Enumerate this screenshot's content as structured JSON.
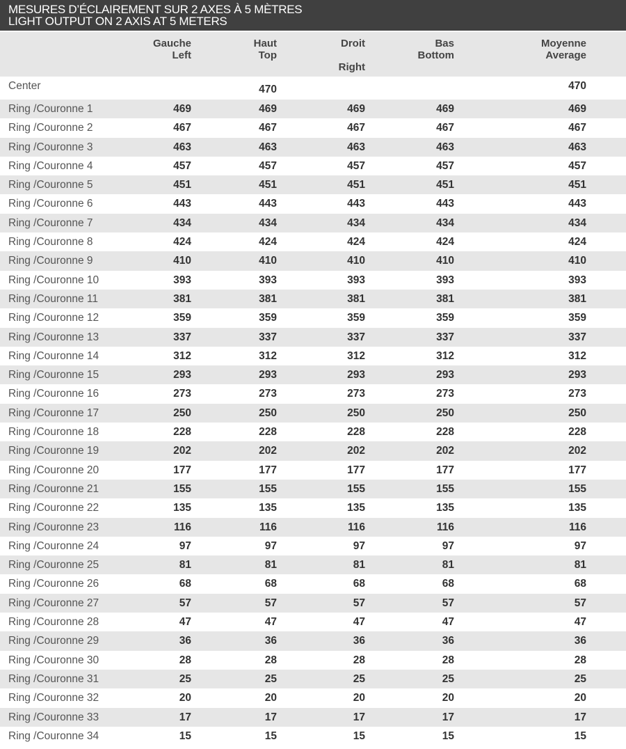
{
  "title": {
    "line1": "MESURES D’ÉCLAIREMENT SUR 2 AXES À 5 MÈTRES",
    "line2": "LIGHT OUTPUT ON 2 AXIS AT 5 METERS"
  },
  "columns": [
    {
      "fr": "Gauche",
      "en": "Left"
    },
    {
      "fr": "Haut",
      "en": "Top"
    },
    {
      "fr": "Droit",
      "en": "Right"
    },
    {
      "fr": "Bas",
      "en": "Bottom"
    },
    {
      "fr": "Moyenne",
      "en": "Average"
    }
  ],
  "rows": [
    {
      "label": "Center",
      "values": [
        null,
        470,
        null,
        null,
        470
      ]
    },
    {
      "label": "Ring /Couronne 1",
      "values": [
        469,
        469,
        469,
        469,
        469
      ]
    },
    {
      "label": "Ring /Couronne 2",
      "values": [
        467,
        467,
        467,
        467,
        467
      ]
    },
    {
      "label": "Ring /Couronne 3",
      "values": [
        463,
        463,
        463,
        463,
        463
      ]
    },
    {
      "label": "Ring /Couronne 4",
      "values": [
        457,
        457,
        457,
        457,
        457
      ]
    },
    {
      "label": "Ring /Couronne 5",
      "values": [
        451,
        451,
        451,
        451,
        451
      ]
    },
    {
      "label": "Ring /Couronne 6",
      "values": [
        443,
        443,
        443,
        443,
        443
      ]
    },
    {
      "label": "Ring /Couronne 7",
      "values": [
        434,
        434,
        434,
        434,
        434
      ]
    },
    {
      "label": "Ring /Couronne 8",
      "values": [
        424,
        424,
        424,
        424,
        424
      ]
    },
    {
      "label": "Ring /Couronne 9",
      "values": [
        410,
        410,
        410,
        410,
        410
      ]
    },
    {
      "label": "Ring /Couronne 10",
      "values": [
        393,
        393,
        393,
        393,
        393
      ]
    },
    {
      "label": "Ring /Couronne 11",
      "values": [
        381,
        381,
        381,
        381,
        381
      ]
    },
    {
      "label": "Ring /Couronne 12",
      "values": [
        359,
        359,
        359,
        359,
        359
      ]
    },
    {
      "label": "Ring /Couronne 13",
      "values": [
        337,
        337,
        337,
        337,
        337
      ]
    },
    {
      "label": "Ring /Couronne 14",
      "values": [
        312,
        312,
        312,
        312,
        312
      ]
    },
    {
      "label": "Ring /Couronne 15",
      "values": [
        293,
        293,
        293,
        293,
        293
      ]
    },
    {
      "label": "Ring /Couronne 16",
      "values": [
        273,
        273,
        273,
        273,
        273
      ]
    },
    {
      "label": "Ring /Couronne 17",
      "values": [
        250,
        250,
        250,
        250,
        250
      ]
    },
    {
      "label": "Ring /Couronne 18",
      "values": [
        228,
        228,
        228,
        228,
        228
      ]
    },
    {
      "label": "Ring /Couronne 19",
      "values": [
        202,
        202,
        202,
        202,
        202
      ]
    },
    {
      "label": "Ring /Couronne 20",
      "values": [
        177,
        177,
        177,
        177,
        177
      ]
    },
    {
      "label": "Ring /Couronne 21",
      "values": [
        155,
        155,
        155,
        155,
        155
      ]
    },
    {
      "label": "Ring /Couronne 22",
      "values": [
        135,
        135,
        135,
        135,
        135
      ]
    },
    {
      "label": "Ring /Couronne 23",
      "values": [
        116,
        116,
        116,
        116,
        116
      ]
    },
    {
      "label": "Ring /Couronne 24",
      "values": [
        97,
        97,
        97,
        97,
        97
      ]
    },
    {
      "label": "Ring /Couronne 25",
      "values": [
        81,
        81,
        81,
        81,
        81
      ]
    },
    {
      "label": "Ring /Couronne 26",
      "values": [
        68,
        68,
        68,
        68,
        68
      ]
    },
    {
      "label": "Ring /Couronne 27",
      "values": [
        57,
        57,
        57,
        57,
        57
      ]
    },
    {
      "label": "Ring /Couronne 28",
      "values": [
        47,
        47,
        47,
        47,
        47
      ]
    },
    {
      "label": "Ring /Couronne 29",
      "values": [
        36,
        36,
        36,
        36,
        36
      ]
    },
    {
      "label": "Ring /Couronne 30",
      "values": [
        28,
        28,
        28,
        28,
        28
      ]
    },
    {
      "label": "Ring /Couronne 31",
      "values": [
        25,
        25,
        25,
        25,
        25
      ]
    },
    {
      "label": "Ring /Couronne 32",
      "values": [
        20,
        20,
        20,
        20,
        20
      ]
    },
    {
      "label": "Ring /Couronne 33",
      "values": [
        17,
        17,
        17,
        17,
        17
      ]
    },
    {
      "label": "Ring /Couronne 34",
      "values": [
        15,
        15,
        15,
        15,
        15
      ]
    }
  ]
}
